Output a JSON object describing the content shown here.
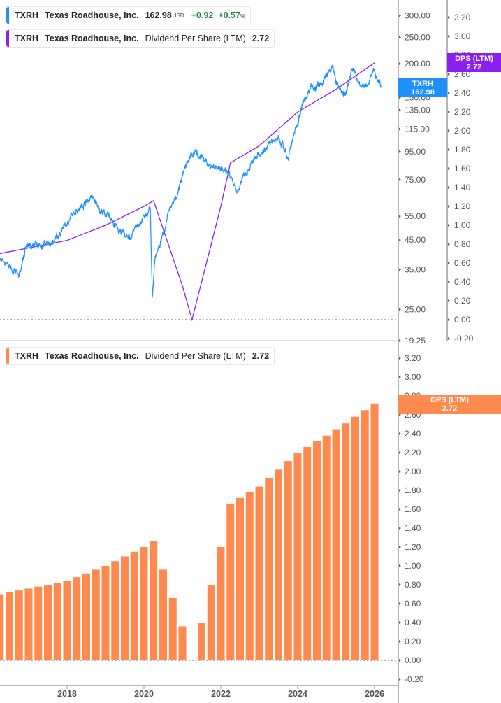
{
  "legends": {
    "price": {
      "ticker": "TXRH",
      "name": "Texas Roadhouse, Inc.",
      "price": "162.98",
      "currency": "USD",
      "change": "+0.92",
      "change_pct": "+0.57",
      "pct_sign": "%",
      "color": "#1e90ff"
    },
    "dps_top": {
      "ticker": "TXRH",
      "name": "Texas Roadhouse, Inc.",
      "metric": "Dividend Per Share (LTM)",
      "value": "2.72",
      "color": "#8a1ff0"
    },
    "dps_bottom": {
      "ticker": "TXRH",
      "name": "Texas Roadhouse, Inc.",
      "metric": "Dividend Per Share (LTM)",
      "value": "2.72",
      "color": "#ff8a50"
    }
  },
  "badges": {
    "price": {
      "line1": "TXRH",
      "line2": "162.98",
      "color": "#1e90ff"
    },
    "dps_top": {
      "line1": "DPS (LTM)",
      "line2": "2.72",
      "color": "#8a1ff0"
    },
    "dps_bottom": {
      "line1": "DPS (LTM)",
      "line2": "2.72",
      "color": "#ff8a50"
    }
  },
  "chart_data": [
    {
      "type": "line",
      "pane": "top",
      "yscale": "log",
      "ylim": [
        19.25,
        330
      ],
      "y_ticks": [
        "300.00",
        "250.00",
        "200.00",
        "150.00",
        "135.00",
        "115.00",
        "95.00",
        "75.00",
        "55.00",
        "45.00",
        "35.00",
        "25.00",
        "19.25"
      ],
      "y2lim": [
        -0.2,
        3.3
      ],
      "y2_ticks": [
        "3.20",
        "3.00",
        "2.80",
        "2.60",
        "2.40",
        "2.20",
        "2.00",
        "1.80",
        "1.60",
        "1.40",
        "1.20",
        "1.00",
        "0.80",
        "0.60",
        "0.40",
        "0.20",
        "0.00",
        "-0.20"
      ],
      "series": [
        {
          "name": "TXRH",
          "axis": "left",
          "color": "#1e90ff",
          "points": [
            [
              "2016-04",
              38.4
            ],
            [
              "2016-06",
              37
            ],
            [
              "2016-10",
              33.1
            ],
            [
              "2016-12",
              42
            ],
            [
              "2017-05",
              43
            ],
            [
              "2017-09",
              44.5
            ],
            [
              "2017-12",
              50
            ],
            [
              "2018-04",
              58
            ],
            [
              "2018-09",
              65
            ],
            [
              "2018-11",
              58
            ],
            [
              "2019-02",
              55
            ],
            [
              "2019-05",
              48.6
            ],
            [
              "2019-09",
              46
            ],
            [
              "2019-11",
              51.5
            ],
            [
              "2020-02",
              56.4
            ],
            [
              "2020-03",
              58
            ],
            [
              "2020-03-20",
              27.7
            ],
            [
              "2020-04-15",
              38.4
            ],
            [
              "2020-07",
              47
            ],
            [
              "2020-09",
              58
            ],
            [
              "2020-12",
              69
            ],
            [
              "2021-02",
              85
            ],
            [
              "2021-05",
              96
            ],
            [
              "2021-09",
              85
            ],
            [
              "2022-01",
              83
            ],
            [
              "2022-04",
              76
            ],
            [
              "2022-06",
              67
            ],
            [
              "2022-08",
              78
            ],
            [
              "2022-12",
              90
            ],
            [
              "2023-05",
              105
            ],
            [
              "2023-07",
              108
            ],
            [
              "2023-10",
              90
            ],
            [
              "2023-12",
              111
            ],
            [
              "2024-02",
              137
            ],
            [
              "2024-05",
              164
            ],
            [
              "2024-08",
              167
            ],
            [
              "2024-12",
              195
            ],
            [
              "2025-01",
              168
            ],
            [
              "2025-04",
              154
            ],
            [
              "2025-06",
              192
            ],
            [
              "2025-09",
              164
            ],
            [
              "2025-11",
              170
            ],
            [
              "2026-01",
              190
            ],
            [
              "2026-03",
              162.98
            ]
          ]
        },
        {
          "name": "Dividend Per Share (LTM)",
          "axis": "right",
          "color": "#8a1ff0",
          "ref": "dps"
        }
      ]
    },
    {
      "type": "bar",
      "pane": "bottom",
      "ylim": [
        -0.2,
        3.3
      ],
      "y_ticks": [
        "3.20",
        "3.00",
        "2.80",
        "2.60",
        "2.40",
        "2.20",
        "2.00",
        "1.80",
        "1.60",
        "1.40",
        "1.20",
        "1.00",
        "0.80",
        "0.60",
        "0.40",
        "0.20",
        "0.00",
        "-0.20"
      ],
      "x_ticks": [
        "2018",
        "2020",
        "2022",
        "2024",
        "2026"
      ],
      "color": "#ff8a50",
      "dates": [
        "2016-04",
        "2016-07",
        "2016-10",
        "2017-01",
        "2017-04",
        "2017-07",
        "2017-10",
        "2018-01",
        "2018-04",
        "2018-07",
        "2018-10",
        "2019-01",
        "2019-04",
        "2019-07",
        "2019-10",
        "2020-01",
        "2020-04",
        "2020-07",
        "2020-10",
        "2021-01",
        "2021-04",
        "2021-07",
        "2021-10",
        "2022-01",
        "2022-04",
        "2022-07",
        "2022-10",
        "2023-01",
        "2023-04",
        "2023-07",
        "2023-10",
        "2024-01",
        "2024-04",
        "2024-07",
        "2024-10",
        "2025-01",
        "2025-04",
        "2025-07",
        "2025-10",
        "2026-01"
      ],
      "values": [
        0.7,
        0.72,
        0.74,
        0.76,
        0.78,
        0.8,
        0.82,
        0.84,
        0.88,
        0.92,
        0.96,
        1.0,
        1.05,
        1.1,
        1.15,
        1.2,
        1.26,
        0.96,
        0.66,
        0.36,
        0,
        0.4,
        0.8,
        1.2,
        1.66,
        1.72,
        1.78,
        1.84,
        1.93,
        2.02,
        2.11,
        2.2,
        2.26,
        2.32,
        2.38,
        2.44,
        2.51,
        2.58,
        2.65,
        2.72
      ]
    }
  ]
}
